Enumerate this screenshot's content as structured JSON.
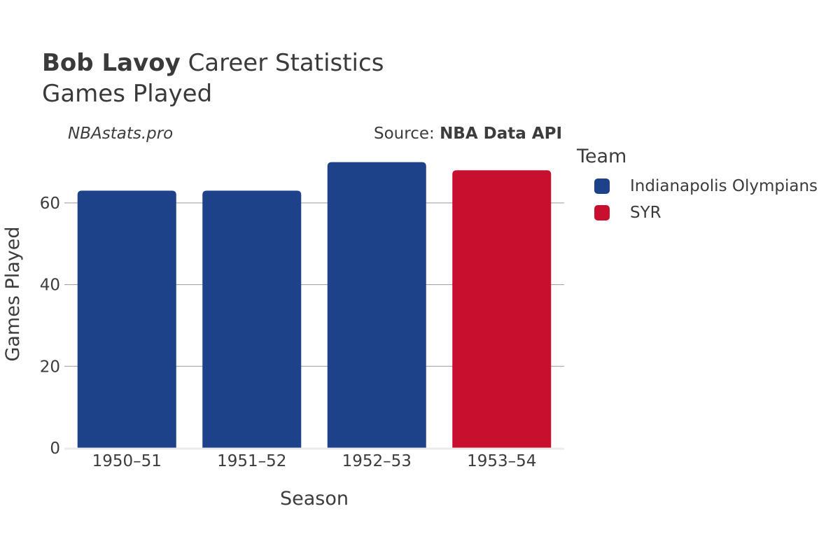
{
  "header": {
    "player": "Bob Lavoy",
    "title_rest": "Career Statistics",
    "subtitle": "Games Played",
    "watermark": "NBAstats.pro",
    "source_prefix": "Source:",
    "source_name": "NBA Data API"
  },
  "legend": {
    "title": "Team",
    "items": [
      {
        "label": "Indianapolis Olympians",
        "color": "#1d428a"
      },
      {
        "label": "SYR",
        "color": "#c8102e"
      }
    ]
  },
  "chart_data": {
    "type": "bar",
    "title": "Bob Lavoy Career Statistics",
    "subtitle": "Games Played",
    "xlabel": "Season",
    "ylabel": "Games Played",
    "categories": [
      "1950–51",
      "1951–52",
      "1952–53",
      "1953–54"
    ],
    "values": [
      63,
      63,
      70,
      68
    ],
    "teams": [
      "Indianapolis Olympians",
      "Indianapolis Olympians",
      "Indianapolis Olympians",
      "SYR"
    ],
    "colors": [
      "#1d428a",
      "#1d428a",
      "#1d428a",
      "#c8102e"
    ],
    "yticks": [
      0,
      20,
      40,
      60
    ],
    "ylim": [
      0,
      73.7
    ],
    "grid": true
  }
}
